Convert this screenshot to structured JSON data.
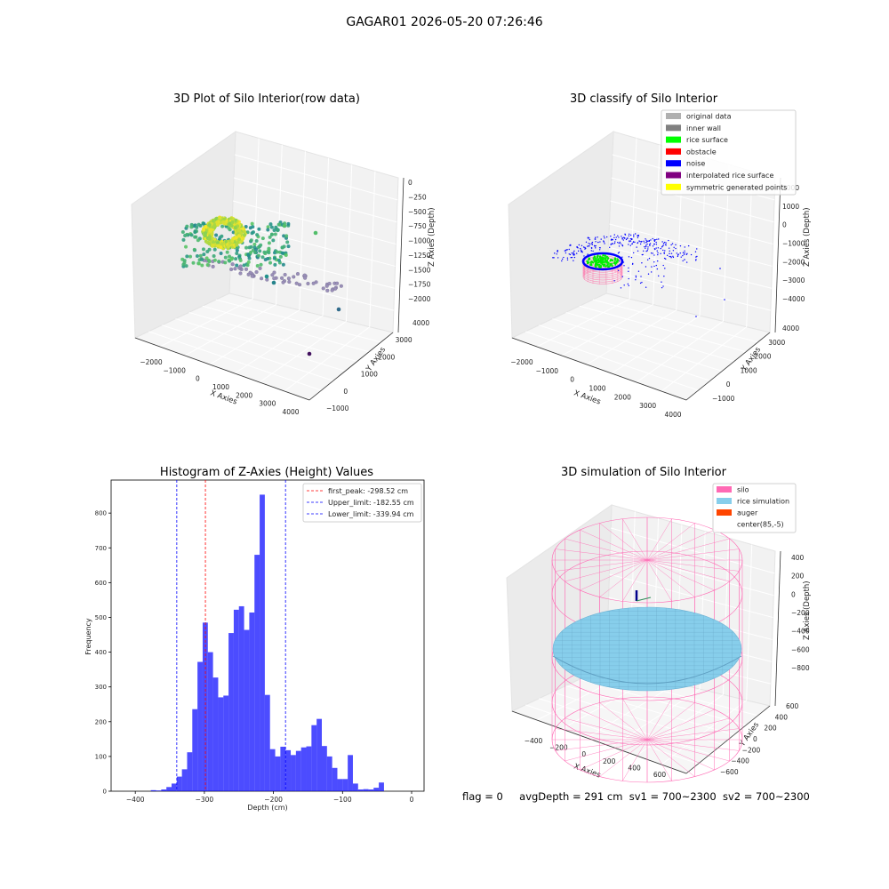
{
  "figure": {
    "title": "GAGAR01 2026-05-20 07:26:46",
    "footer": {
      "flag": "flag = 0",
      "avg_depth": "avgDepth = 291 cm",
      "sv1": "sv1 = 700~2300",
      "sv2": "sv2 = 700~2300"
    }
  },
  "chart_data": [
    {
      "type": "scatter",
      "projection": "3d",
      "title": "3D Plot of Silo Interior(row data)",
      "xlabel": "X Axies",
      "ylabel": "Y Axies",
      "zlabel": "Z Axies (Depth)",
      "x_ticks": [
        "−2000",
        "−1000",
        "0",
        "1000",
        "2000",
        "3000",
        "4000"
      ],
      "y_ticks": [
        "−1000",
        "0",
        "1000",
        "2000",
        "3000",
        "4000"
      ],
      "z_ticks": [
        "0",
        "−250",
        "−500",
        "−750",
        "−1000",
        "−1250",
        "−1500",
        "−1750",
        "−2000"
      ],
      "colormap": "viridis (by depth)",
      "grid": true
    },
    {
      "type": "scatter",
      "projection": "3d",
      "title": "3D classify of Silo Interior",
      "xlabel": "X Axies",
      "ylabel": "Y Axies",
      "zlabel": "Z Axies (Depth)",
      "x_ticks": [
        "−2000",
        "−1000",
        "0",
        "1000",
        "2000",
        "3000",
        "4000"
      ],
      "y_ticks": [
        "−1000",
        "0",
        "1000",
        "2000",
        "3000",
        "4000"
      ],
      "z_ticks": [
        "2000",
        "1000",
        "0",
        "−1000",
        "−2000",
        "−3000",
        "−4000"
      ],
      "legend_position": "top-right",
      "legend": [
        {
          "label": "original data",
          "color": "#b0b0b0"
        },
        {
          "label": "inner wall",
          "color": "#808080"
        },
        {
          "label": "rice surface",
          "color": "#00ff00"
        },
        {
          "label": "obstacle",
          "color": "#ff0000"
        },
        {
          "label": "noise",
          "color": "#0000ff"
        },
        {
          "label": "interpolated rice surface",
          "color": "#800080"
        },
        {
          "label": "symmetric generated points",
          "color": "#ffff00"
        }
      ],
      "grid": true
    },
    {
      "type": "bar",
      "title": "Histogram of Z-Axies (Height) Values",
      "xlabel": "Depth (cm)",
      "ylabel": "Frequency",
      "xlim": [
        -435,
        18
      ],
      "ylim": [
        0,
        895
      ],
      "x_ticks": [
        -400,
        -300,
        -200,
        -100,
        0
      ],
      "x_tick_labels": [
        "−400",
        "−300",
        "−200",
        "−100",
        "0"
      ],
      "y_ticks": [
        0,
        100,
        200,
        300,
        400,
        500,
        600,
        700,
        800
      ],
      "y_tick_labels": [
        "0",
        "100",
        "200",
        "300",
        "400",
        "500",
        "600",
        "700",
        "800"
      ],
      "bin_edges_start": -377.5,
      "bin_width": 7.5,
      "values": [
        3,
        2,
        5,
        12,
        22,
        42,
        63,
        112,
        236,
        372,
        485,
        400,
        327,
        270,
        275,
        455,
        522,
        532,
        464,
        514,
        680,
        853,
        277,
        121,
        100,
        128,
        118,
        104,
        116,
        126,
        129,
        190,
        208,
        130,
        100,
        67,
        35,
        35,
        104,
        22,
        5,
        6,
        5,
        10,
        25
      ],
      "bar_color": "#0000ff",
      "lines": [
        {
          "label": "first_peak: -298.52 cm",
          "x": -298.52,
          "color": "#ff0000"
        },
        {
          "label": "Upper_limit: -182.55 cm",
          "x": -182.55,
          "color": "#0000ff"
        },
        {
          "label": "Lower_limit: -339.94 cm",
          "x": -339.94,
          "color": "#0000ff"
        }
      ],
      "legend_position": "top-right"
    },
    {
      "type": "surface",
      "projection": "3d",
      "title": "3D simulation of Silo Interior",
      "xlabel": "X Axies",
      "ylabel": "Y Axies",
      "zlabel": "Z Axies (Depth)",
      "x_ticks": [
        "−400",
        "−200",
        "0",
        "200",
        "400",
        "600"
      ],
      "y_ticks": [
        "−600",
        "−400",
        "−200",
        "0",
        "200",
        "400",
        "600"
      ],
      "z_ticks": [
        "400",
        "200",
        "0",
        "−200",
        "−400",
        "−600",
        "−800"
      ],
      "legend_position": "top-right",
      "legend": [
        {
          "label": "silo",
          "color": "#ff69b4"
        },
        {
          "label": "rice simulation",
          "color": "#87ceeb"
        },
        {
          "label": "auger",
          "color": "#ff4500"
        },
        {
          "label": "center(85,-5)",
          "color": "#ffffff"
        }
      ],
      "grid": true
    }
  ]
}
